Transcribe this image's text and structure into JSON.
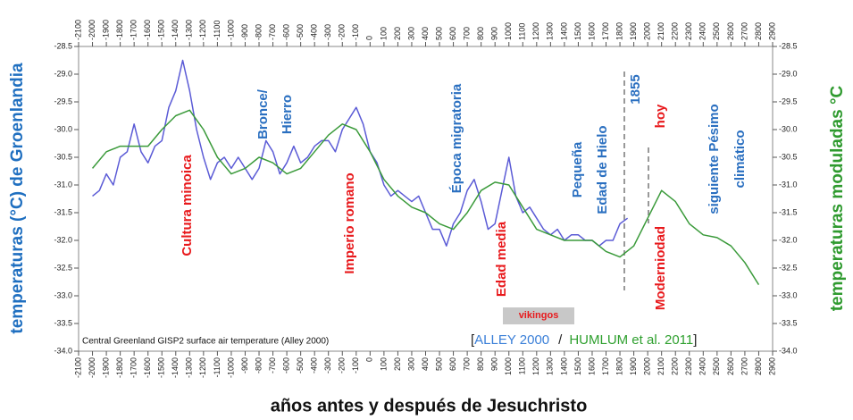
{
  "chart_data": {
    "type": "line",
    "xlabel": "años antes y después de Jesuchristo",
    "ylabel": "temperaturas (°C) de Groenlandia",
    "y2label": "temperaturas moduladas °C",
    "note": "Central Greenland GISP2 surface air temperature (Alley 2000)",
    "legend_separators": [
      "[",
      "/",
      "]"
    ],
    "grid": false,
    "xlim": [
      -2100,
      2900
    ],
    "xticks": [
      -2100,
      -2000,
      -1900,
      -1800,
      -1700,
      -1600,
      -1500,
      -1400,
      -1300,
      -1200,
      -1100,
      -1000,
      -900,
      -800,
      -700,
      -600,
      -500,
      -400,
      -300,
      -200,
      -100,
      0,
      100,
      200,
      300,
      400,
      500,
      600,
      700,
      800,
      900,
      1000,
      1100,
      1200,
      1300,
      1400,
      1500,
      1600,
      1700,
      1800,
      1900,
      2000,
      2100,
      2200,
      2300,
      2400,
      2500,
      2600,
      2700,
      2800,
      2900
    ],
    "ylim": [
      -34.0,
      -28.5
    ],
    "yticks": [
      {
        "value": -34.0,
        "label": "-34.0"
      },
      -33.5,
      {
        "value": -33.0,
        "label": "-33.0"
      },
      -32.5,
      {
        "value": -32.0,
        "label": "-32.0"
      },
      -31.5,
      {
        "value": -31.0,
        "label": "-31.0"
      },
      -30.5,
      {
        "value": -30.0,
        "label": "-30.0"
      },
      -29.5,
      {
        "value": -29.0,
        "label": "-29.0"
      },
      -28.5
    ],
    "y2lim": [
      -34.0,
      -28.5
    ],
    "y2ticks": [
      {
        "value": -34.0,
        "label": "-34.0"
      },
      -33.5,
      {
        "value": -33.0,
        "label": "-33.0"
      },
      -32.5,
      {
        "value": -32.0,
        "label": "-32.0"
      },
      -31.5,
      {
        "value": -31.0,
        "label": "-31.0"
      },
      -30.5,
      {
        "value": -30.0,
        "label": "-30.0"
      },
      -29.5,
      {
        "value": -29.0,
        "label": "-29.0"
      },
      -28.5
    ],
    "series": [
      {
        "name": "ALLEY 2000",
        "color": "#5b5bd6",
        "x": [
          -2000,
          -1950,
          -1900,
          -1850,
          -1800,
          -1750,
          -1700,
          -1650,
          -1600,
          -1550,
          -1500,
          -1450,
          -1400,
          -1350,
          -1300,
          -1250,
          -1200,
          -1150,
          -1100,
          -1050,
          -1000,
          -950,
          -900,
          -850,
          -800,
          -750,
          -700,
          -650,
          -600,
          -550,
          -500,
          -450,
          -400,
          -350,
          -300,
          -250,
          -200,
          -150,
          -100,
          -50,
          0,
          50,
          100,
          150,
          200,
          250,
          300,
          350,
          400,
          450,
          500,
          550,
          600,
          650,
          700,
          750,
          800,
          850,
          900,
          950,
          1000,
          1050,
          1100,
          1150,
          1200,
          1250,
          1300,
          1350,
          1400,
          1450,
          1500,
          1550,
          1600,
          1650,
          1700,
          1750,
          1800,
          1855
        ],
        "values": [
          -31.2,
          -31.1,
          -30.8,
          -31.0,
          -30.5,
          -30.4,
          -29.9,
          -30.4,
          -30.6,
          -30.3,
          -30.2,
          -29.6,
          -29.3,
          -28.75,
          -29.3,
          -30.0,
          -30.5,
          -30.9,
          -30.6,
          -30.5,
          -30.7,
          -30.5,
          -30.7,
          -30.9,
          -30.7,
          -30.2,
          -30.4,
          -30.8,
          -30.6,
          -30.3,
          -30.6,
          -30.5,
          -30.3,
          -30.2,
          -30.2,
          -30.4,
          -30.0,
          -29.8,
          -29.6,
          -29.9,
          -30.4,
          -30.6,
          -31.0,
          -31.2,
          -31.1,
          -31.2,
          -31.3,
          -31.2,
          -31.5,
          -31.8,
          -31.8,
          -32.1,
          -31.7,
          -31.5,
          -31.1,
          -30.9,
          -31.3,
          -31.8,
          -31.7,
          -31.1,
          -30.5,
          -31.2,
          -31.5,
          -31.4,
          -31.6,
          -31.8,
          -31.9,
          -31.8,
          -32.0,
          -31.9,
          -31.9,
          -32.0,
          -32.0,
          -32.1,
          -32.0,
          -32.0,
          -31.7,
          -31.6
        ]
      },
      {
        "name": "HUMLUM et al. 2011",
        "color": "#3a9a3a",
        "axis": "y2",
        "x": [
          -2000,
          -1900,
          -1800,
          -1700,
          -1600,
          -1500,
          -1400,
          -1300,
          -1200,
          -1100,
          -1000,
          -900,
          -800,
          -700,
          -600,
          -500,
          -400,
          -300,
          -200,
          -100,
          0,
          100,
          200,
          300,
          400,
          500,
          600,
          700,
          800,
          900,
          1000,
          1100,
          1200,
          1300,
          1400,
          1500,
          1600,
          1700,
          1800,
          1900,
          2000,
          2100,
          2200,
          2300,
          2400,
          2500,
          2600,
          2700,
          2800
        ],
        "values": [
          -30.7,
          -30.4,
          -30.3,
          -30.3,
          -30.3,
          -30.0,
          -29.75,
          -29.65,
          -30.0,
          -30.5,
          -30.8,
          -30.7,
          -30.5,
          -30.6,
          -30.8,
          -30.7,
          -30.4,
          -30.1,
          -29.9,
          -30.0,
          -30.4,
          -30.9,
          -31.2,
          -31.4,
          -31.5,
          -31.7,
          -31.8,
          -31.5,
          -31.1,
          -30.95,
          -31.0,
          -31.4,
          -31.8,
          -31.9,
          -32.0,
          -32.0,
          -32.0,
          -32.2,
          -32.3,
          -32.1,
          -31.6,
          -31.1,
          -31.3,
          -31.7,
          -31.9,
          -31.95,
          -32.1,
          -32.4,
          -32.8
        ]
      }
    ],
    "annotations": [
      {
        "text": "Cultura minoica",
        "color": "#e8191c"
      },
      {
        "text": "Bronce/",
        "color": "#2a6fc0"
      },
      {
        "text": "Hierro",
        "color": "#2a6fc0"
      },
      {
        "text": "Imperio romano",
        "color": "#e8191c"
      },
      {
        "text": "Época migratoria",
        "color": "#2a6fc0"
      },
      {
        "text": "Edad media",
        "color": "#e8191c"
      },
      {
        "text": "vikingos",
        "color": "#e8191c"
      },
      {
        "text": "Pequeña",
        "color": "#2a6fc0"
      },
      {
        "text": "Edad de Hielo",
        "color": "#2a6fc0"
      },
      {
        "text": "1855",
        "color": "#2a6fc0"
      },
      {
        "text": "hoy",
        "color": "#e8191c"
      },
      {
        "text": "Moderniodad",
        "color": "#e8191c"
      },
      {
        "text": "siguiente Pésimo",
        "color": "#2a6fc0"
      },
      {
        "text": "climático",
        "color": "#2a6fc0"
      }
    ]
  }
}
